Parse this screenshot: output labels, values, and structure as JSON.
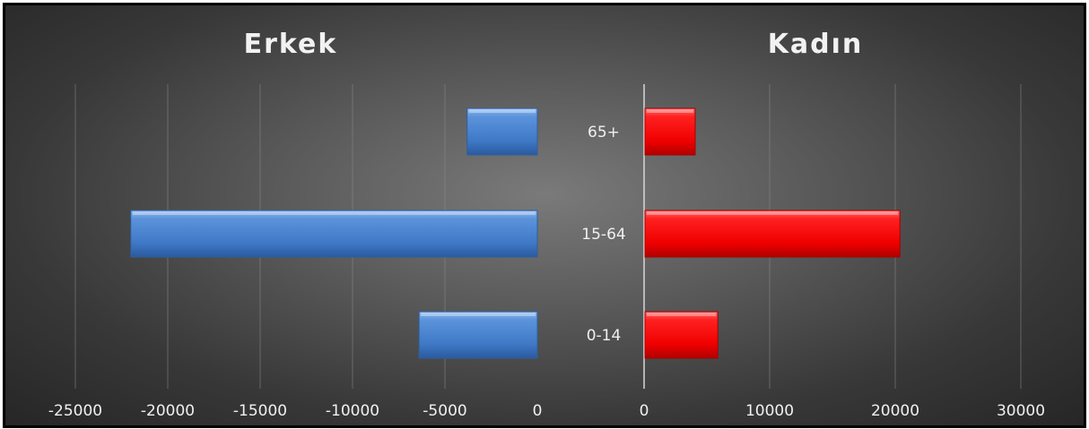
{
  "chart_data": {
    "type": "bar",
    "orientation": "horizontal",
    "layout": "population-pyramid",
    "categories": [
      "65+",
      "15-64",
      "0-14"
    ],
    "panels": [
      {
        "title": "Erkek",
        "color": "#4a86d4",
        "values": [
          -3800,
          -22000,
          -6400
        ],
        "xlim": [
          -25000,
          0
        ],
        "ticks": [
          -25000,
          -20000,
          -15000,
          -10000,
          -5000,
          0
        ]
      },
      {
        "title": "Kadın",
        "color": "#ff1a1a",
        "values": [
          4000,
          20300,
          5800
        ],
        "xlim": [
          0,
          30000
        ],
        "ticks": [
          0,
          10000,
          20000,
          30000
        ]
      }
    ],
    "grid": true
  }
}
